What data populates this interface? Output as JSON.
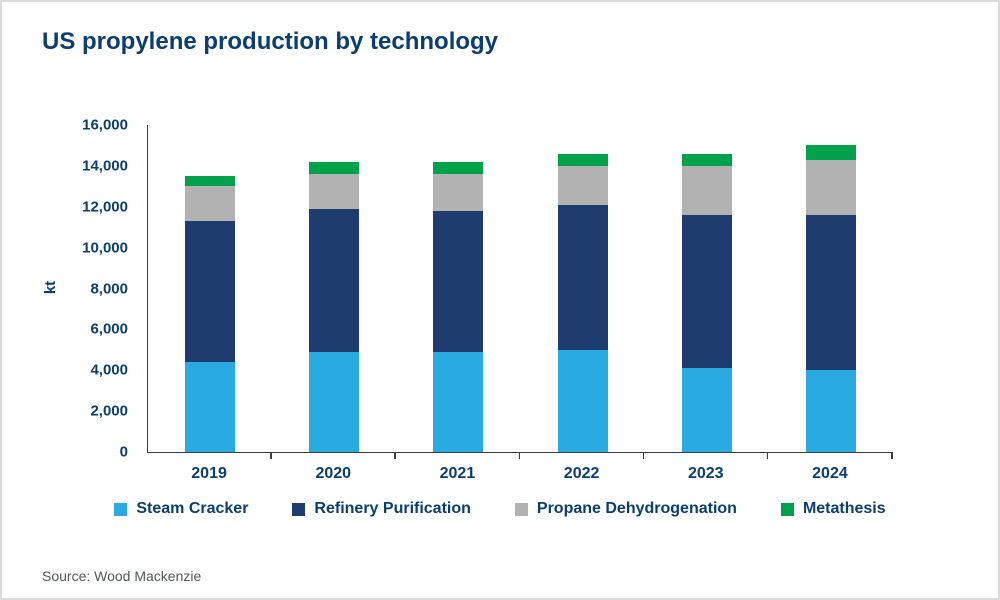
{
  "title": "US propylene production by technology",
  "source": "Source: Wood Mackenzie",
  "colors": {
    "text_navy": "#0b3e70",
    "axis": "#3c3c3c",
    "background": "#ffffff"
  },
  "chart_data": {
    "type": "bar",
    "stacked": true,
    "title": "US propylene production by technology",
    "xlabel": "",
    "ylabel": "kt",
    "ylim": [
      0,
      16000
    ],
    "ytick_step": 2000,
    "ytick_labels": [
      "0",
      "2,000",
      "4,000",
      "6,000",
      "8,000",
      "10,000",
      "12,000",
      "14,000",
      "16,000"
    ],
    "grid": false,
    "legend_position": "bottom",
    "categories": [
      "2019",
      "2020",
      "2021",
      "2022",
      "2023",
      "2024"
    ],
    "series": [
      {
        "name": "Steam Cracker",
        "color": "#29abe2",
        "values": [
          4400,
          4900,
          4900,
          5000,
          4100,
          4000
        ]
      },
      {
        "name": "Refinery Purification",
        "color": "#1e3c6d",
        "values": [
          6900,
          7000,
          6900,
          7100,
          7500,
          7600
        ]
      },
      {
        "name": "Propane Dehydrogenation",
        "color": "#b2b2b2",
        "values": [
          1700,
          1700,
          1800,
          1900,
          2400,
          2700
        ]
      },
      {
        "name": "Metathesis",
        "color": "#00a14b",
        "values": [
          500,
          600,
          600,
          600,
          600,
          700
        ]
      }
    ]
  }
}
